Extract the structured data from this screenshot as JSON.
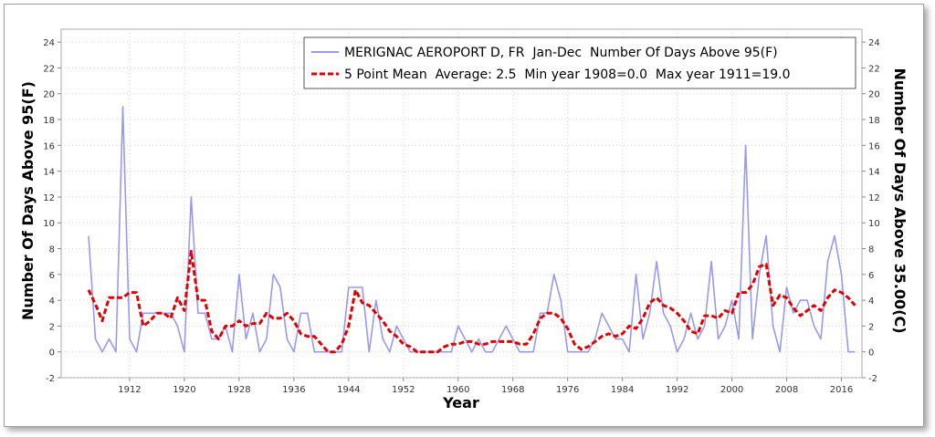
{
  "chart_data": {
    "type": "line",
    "xlabel": "Year",
    "ylabel_left": "Number Of Days Above 95(F)",
    "ylabel_right": "Number Of Days Above 35.00(C)",
    "xlim": [
      1902,
      2019
    ],
    "ylim": [
      -2,
      25
    ],
    "x_ticks": [
      1912,
      1920,
      1928,
      1936,
      1944,
      1952,
      1960,
      1968,
      1976,
      1984,
      1992,
      2000,
      2008,
      2016
    ],
    "y_ticks": [
      -2,
      0,
      2,
      4,
      6,
      8,
      10,
      12,
      14,
      16,
      18,
      20,
      22,
      24
    ],
    "grid": true,
    "legend_position": "top-right",
    "series": [
      {
        "name": "MERIGNAC AEROPORT D, FR  Jan-Dec  Number Of Days Above 95(F)",
        "color": "#9999ee",
        "style": "solid",
        "x": [
          1906,
          1907,
          1908,
          1909,
          1910,
          1911,
          1912,
          1913,
          1914,
          1915,
          1916,
          1917,
          1918,
          1919,
          1920,
          1921,
          1922,
          1923,
          1924,
          1925,
          1926,
          1927,
          1928,
          1929,
          1930,
          1931,
          1932,
          1933,
          1934,
          1935,
          1936,
          1937,
          1938,
          1939,
          1940,
          1941,
          1942,
          1943,
          1944,
          1945,
          1946,
          1947,
          1948,
          1949,
          1950,
          1951,
          1952,
          1953,
          1954,
          1955,
          1956,
          1957,
          1958,
          1959,
          1960,
          1961,
          1962,
          1963,
          1964,
          1965,
          1966,
          1967,
          1968,
          1969,
          1970,
          1971,
          1972,
          1973,
          1974,
          1975,
          1976,
          1977,
          1978,
          1979,
          1980,
          1981,
          1982,
          1983,
          1984,
          1985,
          1986,
          1987,
          1988,
          1989,
          1990,
          1991,
          1992,
          1993,
          1994,
          1995,
          1996,
          1997,
          1998,
          1999,
          2000,
          2001,
          2002,
          2003,
          2004,
          2005,
          2006,
          2007,
          2008,
          2009,
          2010,
          2011,
          2012,
          2013,
          2014,
          2015,
          2016,
          2017,
          2018
        ],
        "values": [
          9,
          1,
          0,
          1,
          0,
          19,
          1,
          0,
          3,
          3,
          3,
          3,
          3,
          2,
          0,
          12,
          3,
          3,
          1,
          1,
          2,
          0,
          6,
          1,
          3,
          0,
          1,
          6,
          5,
          1,
          0,
          3,
          3,
          0,
          0,
          0,
          0,
          0,
          5,
          5,
          5,
          0,
          4,
          1,
          0,
          2,
          1,
          0,
          0,
          0,
          0,
          0,
          0,
          0,
          2,
          1,
          0,
          1,
          0,
          0,
          1,
          2,
          1,
          0,
          0,
          0,
          3,
          3,
          6,
          4,
          0,
          0,
          0,
          0,
          1,
          3,
          2,
          1,
          1,
          0,
          6,
          1,
          3,
          7,
          3,
          2,
          0,
          1,
          3,
          1,
          2,
          7,
          1,
          2,
          4,
          1,
          16,
          1,
          6,
          9,
          2,
          0,
          5,
          3,
          4,
          4,
          2,
          1,
          7,
          9,
          6,
          0,
          0
        ]
      },
      {
        "name": "5 Point Mean  Average: 2.5  Min year 1908=0.0  Max year 1911=19.0",
        "color": "#e00000",
        "style": "dashed",
        "x": [
          1906,
          1907,
          1908,
          1909,
          1910,
          1911,
          1912,
          1913,
          1914,
          1915,
          1916,
          1917,
          1918,
          1919,
          1920,
          1921,
          1922,
          1923,
          1924,
          1925,
          1926,
          1927,
          1928,
          1929,
          1930,
          1931,
          1932,
          1933,
          1934,
          1935,
          1936,
          1937,
          1938,
          1939,
          1940,
          1941,
          1942,
          1943,
          1944,
          1945,
          1946,
          1947,
          1948,
          1949,
          1950,
          1951,
          1952,
          1953,
          1954,
          1955,
          1956,
          1957,
          1958,
          1959,
          1960,
          1961,
          1962,
          1963,
          1964,
          1965,
          1966,
          1967,
          1968,
          1969,
          1970,
          1971,
          1972,
          1973,
          1974,
          1975,
          1976,
          1977,
          1978,
          1979,
          1980,
          1981,
          1982,
          1983,
          1984,
          1985,
          1986,
          1987,
          1988,
          1989,
          1990,
          1991,
          1992,
          1993,
          1994,
          1995,
          1996,
          1997,
          1998,
          1999,
          2000,
          2001,
          2002,
          2003,
          2004,
          2005,
          2006,
          2007,
          2008,
          2009,
          2010,
          2011,
          2012,
          2013,
          2014,
          2015,
          2016,
          2017,
          2018
        ],
        "values": [
          4.8,
          3.7,
          2.4,
          4.2,
          4.2,
          4.2,
          4.6,
          4.6,
          2.0,
          2.4,
          3.0,
          3.0,
          2.6,
          4.2,
          3.2,
          7.8,
          4.0,
          4.0,
          1.6,
          1.0,
          2.0,
          2.0,
          2.4,
          2.0,
          2.2,
          2.2,
          3.0,
          2.6,
          2.6,
          3.0,
          2.4,
          1.4,
          1.2,
          1.2,
          0.6,
          0.0,
          0.0,
          0.6,
          2.0,
          4.8,
          3.8,
          3.6,
          3.0,
          2.4,
          1.6,
          1.2,
          0.6,
          0.4,
          0.0,
          0.0,
          0.0,
          0.0,
          0.4,
          0.6,
          0.6,
          0.8,
          0.8,
          0.6,
          0.6,
          0.8,
          0.8,
          0.8,
          0.8,
          0.6,
          0.6,
          1.4,
          2.6,
          3.0,
          3.0,
          2.6,
          1.8,
          0.6,
          0.2,
          0.4,
          0.8,
          1.2,
          1.4,
          1.2,
          1.4,
          2.0,
          1.8,
          2.6,
          3.8,
          4.2,
          3.6,
          3.4,
          3.0,
          2.4,
          1.6,
          1.4,
          2.8,
          2.8,
          2.6,
          3.2,
          3.0,
          4.6,
          4.6,
          5.2,
          6.6,
          6.8,
          3.6,
          4.4,
          4.2,
          3.4,
          2.8,
          3.2,
          3.6,
          3.2,
          4.2,
          4.8,
          4.6,
          4.2,
          3.6
        ]
      }
    ]
  }
}
